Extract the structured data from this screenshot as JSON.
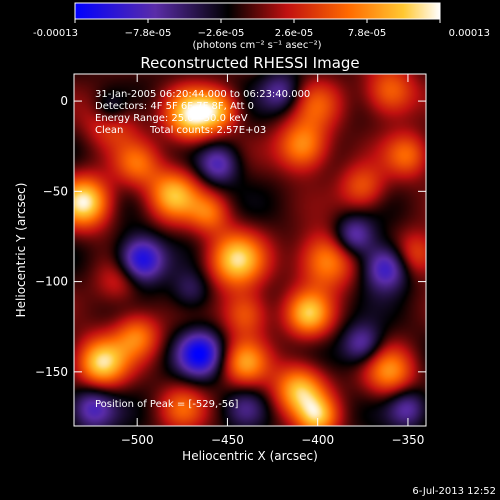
{
  "colorbar": {
    "tick_labels": [
      "-0.00013",
      "−7.8e-05",
      "−2.6e-05",
      "2.6e-05",
      "7.8e-05",
      "0.00013"
    ],
    "units": "(photons cm⁻² s⁻¹ asec⁻²)",
    "range": [
      -0.00013,
      0.00013
    ],
    "colors": [
      "#0000ff",
      "#5a2ca8",
      "#000000",
      "#c01010",
      "#ff6a00",
      "#ffc832",
      "#ffffff"
    ]
  },
  "chart_data": {
    "type": "heatmap",
    "title": "Reconstructed RHESSI Image",
    "xlabel": "Heliocentric X (arcsec)",
    "ylabel": "Heliocentric Y (arcsec)",
    "xlim": [
      -535,
      -340
    ],
    "ylim": [
      -180,
      15
    ],
    "x_ticks": [
      -500,
      -450,
      -400,
      -350
    ],
    "x_tick_labels": [
      "−500",
      "−450",
      "−400",
      "−350"
    ],
    "y_ticks": [
      0,
      -50,
      -100,
      -150
    ],
    "y_tick_labels": [
      "0",
      "−50",
      "−100",
      "−150"
    ],
    "annotations": [
      "31-Jan-2005 06:20:44.000 to 06:23:40.000",
      "Detectors: 4F 5F 6F 7F 8F, Att 0",
      "Energy Range: 25.0 - 50.0 keV",
      "Clean",
      "Total counts: 2.57E+03"
    ],
    "peak_label": "Position of Peak = [-529,-56]",
    "peak": [
      -529,
      -56
    ],
    "blobs": [
      {
        "x": -515,
        "y": -10,
        "v": 0.55,
        "s": 10
      },
      {
        "x": -470,
        "y": -8,
        "v": 0.95,
        "s": 10
      },
      {
        "x": -455,
        "y": -5,
        "v": 0.6,
        "s": 8
      },
      {
        "x": -400,
        "y": -2,
        "v": 0.4,
        "s": 10
      },
      {
        "x": -360,
        "y": 5,
        "v": 0.6,
        "s": 10
      },
      {
        "x": -500,
        "y": -35,
        "v": 0.5,
        "s": 9
      },
      {
        "x": -408,
        "y": -25,
        "v": 0.75,
        "s": 10
      },
      {
        "x": -350,
        "y": -30,
        "v": 0.55,
        "s": 9
      },
      {
        "x": -529,
        "y": -56,
        "v": 1.0,
        "s": 10
      },
      {
        "x": -480,
        "y": -52,
        "v": 0.8,
        "s": 10
      },
      {
        "x": -460,
        "y": -62,
        "v": 0.5,
        "s": 8
      },
      {
        "x": -375,
        "y": -48,
        "v": 0.5,
        "s": 9
      },
      {
        "x": -445,
        "y": -88,
        "v": 0.9,
        "s": 11
      },
      {
        "x": -395,
        "y": -88,
        "v": 0.75,
        "s": 11
      },
      {
        "x": -405,
        "y": -118,
        "v": 0.8,
        "s": 9
      },
      {
        "x": -440,
        "y": -118,
        "v": 0.55,
        "s": 9
      },
      {
        "x": -345,
        "y": -85,
        "v": 0.5,
        "s": 9
      },
      {
        "x": -510,
        "y": -100,
        "v": 0.35,
        "s": 9
      },
      {
        "x": -520,
        "y": -145,
        "v": 0.95,
        "s": 10
      },
      {
        "x": -500,
        "y": -130,
        "v": 0.6,
        "s": 9
      },
      {
        "x": -440,
        "y": -145,
        "v": 0.65,
        "s": 9
      },
      {
        "x": -410,
        "y": -160,
        "v": 0.85,
        "s": 10
      },
      {
        "x": -400,
        "y": -175,
        "v": 0.7,
        "s": 8
      },
      {
        "x": -360,
        "y": -150,
        "v": 0.65,
        "s": 10
      },
      {
        "x": -475,
        "y": -170,
        "v": 0.45,
        "s": 9
      },
      {
        "x": -515,
        "y": -5,
        "v": -0.5,
        "s": 7
      },
      {
        "x": -498,
        "y": -88,
        "v": -0.9,
        "s": 9
      },
      {
        "x": -455,
        "y": -35,
        "v": -0.55,
        "s": 8
      },
      {
        "x": -380,
        "y": -75,
        "v": -0.6,
        "s": 8
      },
      {
        "x": -362,
        "y": -92,
        "v": -0.75,
        "s": 9
      },
      {
        "x": -465,
        "y": -140,
        "v": -0.85,
        "s": 9
      },
      {
        "x": -375,
        "y": -135,
        "v": -0.55,
        "s": 8
      },
      {
        "x": -525,
        "y": -170,
        "v": -0.6,
        "s": 9
      },
      {
        "x": -350,
        "y": -170,
        "v": -0.5,
        "s": 8
      },
      {
        "x": -420,
        "y": 5,
        "v": -0.45,
        "s": 8
      },
      {
        "x": -470,
        "y": -105,
        "v": -0.35,
        "s": 8
      },
      {
        "x": -440,
        "y": -170,
        "v": -0.3,
        "s": 8
      }
    ]
  },
  "footer": {
    "timestamp": "6-Jul-2013 12:52"
  }
}
